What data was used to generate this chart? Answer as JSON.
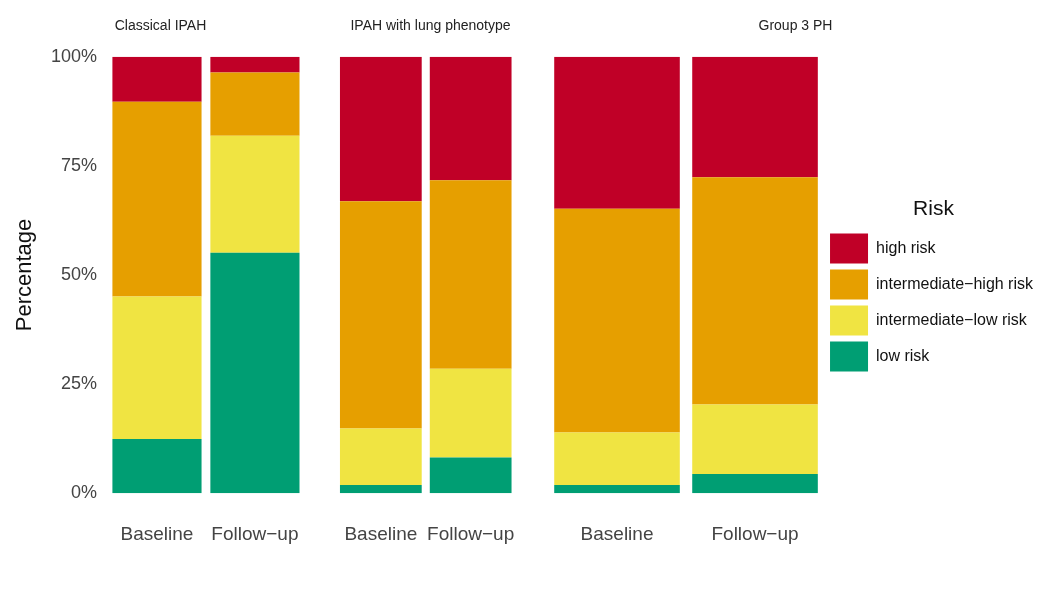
{
  "chart_data": [
    {
      "type": "bar",
      "title": "Classical IPAH",
      "ylabel": "Percentage",
      "stacked": true,
      "categories": [
        "Baseline",
        "Follow−up"
      ],
      "ylim": [
        0,
        100
      ],
      "yticks": [
        {
          "value": 0,
          "label": "0%"
        },
        {
          "value": 25,
          "label": "25%"
        },
        {
          "value": 50,
          "label": "50%"
        },
        {
          "value": 75,
          "label": "75%"
        },
        {
          "value": 100,
          "label": "100%"
        }
      ],
      "grid": false,
      "legend": false,
      "series": [
        {
          "color": "#009e73",
          "values": [
            12.4,
            55.1
          ]
        },
        {
          "color": "#f0e442",
          "values": [
            32.7,
            26.8
          ]
        },
        {
          "color": "#e69f00",
          "values": [
            44.6,
            14.5
          ]
        },
        {
          "color": "#c00027",
          "values": [
            10.3,
            3.6
          ]
        }
      ]
    },
    {
      "type": "bar",
      "title": "IPAH with lung phenotype",
      "stacked": true,
      "categories": [
        "Baseline",
        "Follow−up"
      ],
      "ylim": [
        0,
        100
      ],
      "tick_labels": "x",
      "grid": false,
      "legend": false,
      "series": [
        {
          "color": "#009e73",
          "values": [
            1.9,
            8.2
          ]
        },
        {
          "color": "#f0e442",
          "values": [
            12.9,
            20.3
          ]
        },
        {
          "color": "#e69f00",
          "values": [
            52.1,
            43.2
          ]
        },
        {
          "color": "#c00027",
          "values": [
            33.1,
            28.3
          ]
        }
      ]
    },
    {
      "type": "bar",
      "title": "Group 3 PH",
      "stacked": true,
      "categories": [
        "Baseline",
        "Follow−up"
      ],
      "ylim": [
        0,
        100
      ],
      "tick_labels": "x",
      "grid": false,
      "legend": "right",
      "legend_title": "Risk",
      "series": [
        {
          "name": "low risk",
          "color": "#009e73",
          "values": [
            1.9,
            4.4
          ]
        },
        {
          "name": "intermediate−low risk",
          "color": "#f0e442",
          "values": [
            12.0,
            15.9
          ]
        },
        {
          "name": "intermediate−high risk",
          "color": "#e69f00",
          "values": [
            51.3,
            52.1
          ]
        },
        {
          "name": "high risk",
          "color": "#c00027",
          "values": [
            34.8,
            27.6
          ]
        }
      ]
    }
  ]
}
